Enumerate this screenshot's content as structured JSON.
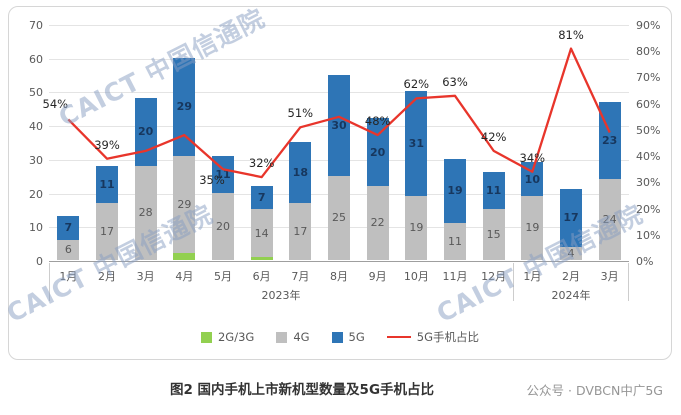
{
  "watermark": {
    "text": "CAICT 中国信通院"
  },
  "caption": "图2  国内手机上市新机型数量及5G手机占比",
  "source_note": "公众号 · DVBCN中广5G",
  "colors": {
    "bar_2g3g": "#92D050",
    "bar_4g": "#BFBFBF",
    "bar_5g": "#2E75B6",
    "line_5g_share": "#E8352B"
  },
  "chart_data": {
    "type": "bar",
    "subtype": "stacked-bars-with-percentage-line",
    "title": "图2  国内手机上市新机型数量及5G手机占比",
    "categories": [
      "1月",
      "2月",
      "3月",
      "4月",
      "5月",
      "6月",
      "7月",
      "8月",
      "9月",
      "10月",
      "11月",
      "12月",
      "1月",
      "2月",
      "3月"
    ],
    "year_groups": [
      {
        "label": "2023年",
        "span": 12
      },
      {
        "label": "2024年",
        "span": 3
      }
    ],
    "series": [
      {
        "name": "2G/3G",
        "key": "g23",
        "color": "#92D050",
        "values": [
          0,
          0,
          0,
          2,
          0,
          1,
          0,
          0,
          0,
          0,
          0,
          0,
          0,
          0,
          0
        ]
      },
      {
        "name": "4G",
        "key": "g4",
        "color": "#BFBFBF",
        "values": [
          6,
          17,
          28,
          29,
          20,
          14,
          17,
          25,
          22,
          19,
          11,
          15,
          19,
          4,
          24
        ]
      },
      {
        "name": "5G",
        "key": "g5",
        "color": "#2E75B6",
        "values": [
          7,
          11,
          20,
          29,
          11,
          7,
          18,
          30,
          20,
          31,
          19,
          11,
          10,
          17,
          23
        ]
      }
    ],
    "line": {
      "name": "5G手机占比",
      "color": "#E8352B",
      "values_pct": [
        54,
        39,
        42,
        48,
        35,
        32,
        51,
        55,
        48,
        62,
        63,
        42,
        34,
        81,
        49
      ],
      "labels": [
        "54%",
        "39%",
        "",
        "",
        "35%",
        "32%",
        "51%",
        "",
        "48%",
        "62%",
        "63%",
        "42%",
        "34%",
        "81%",
        ""
      ]
    },
    "left_axis": {
      "min": 0,
      "max": 70,
      "step": 10,
      "ticks": [
        "0",
        "10",
        "20",
        "30",
        "40",
        "50",
        "60",
        "70"
      ]
    },
    "right_axis": {
      "min": 0,
      "max": 90,
      "step": 10,
      "suffix": "%",
      "ticks": [
        "0%",
        "10%",
        "20%",
        "30%",
        "40%",
        "50%",
        "60%",
        "70%",
        "80%",
        "90%"
      ]
    },
    "grid": true,
    "legend_position": "bottom"
  }
}
